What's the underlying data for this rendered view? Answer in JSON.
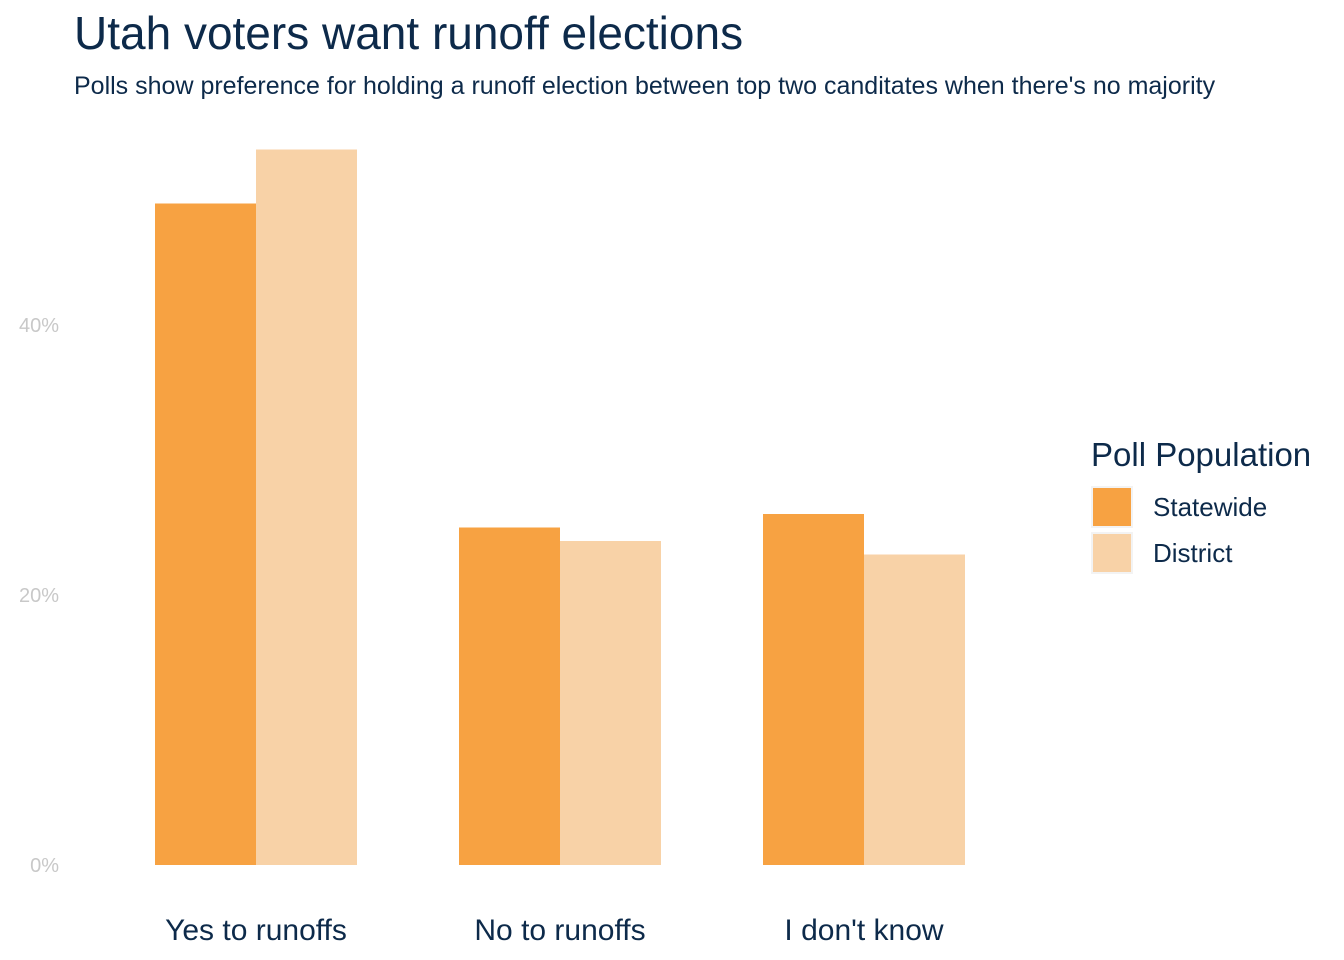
{
  "title": "Utah voters want runoff elections",
  "subtitle": "Polls show preference for holding a runoff election between top two canditates when there's no majority",
  "legend": {
    "title": "Poll Population",
    "items": [
      {
        "label": "Statewide",
        "color": "#f7a242"
      },
      {
        "label": "District",
        "color": "#f8d2a7"
      }
    ],
    "placement": "right"
  },
  "chart_data": {
    "type": "bar",
    "title": "Utah voters want runoff elections",
    "subtitle": "Polls show preference for holding a runoff election between top two canditates when there's no majority",
    "categories": [
      "Yes to runoffs",
      "No to runoffs",
      "I don't know"
    ],
    "series": [
      {
        "name": "Statewide",
        "values": [
          49,
          25,
          26
        ],
        "color": "#f7a242"
      },
      {
        "name": "District",
        "values": [
          53,
          24,
          23
        ],
        "color": "#f8d2a7"
      }
    ],
    "y_ticks": [
      {
        "value": 0,
        "label": "0%"
      },
      {
        "value": 20,
        "label": "20%"
      },
      {
        "value": 40,
        "label": "40%"
      }
    ],
    "ylim": [
      0,
      53
    ],
    "grid": false,
    "legend_placement": "right"
  }
}
